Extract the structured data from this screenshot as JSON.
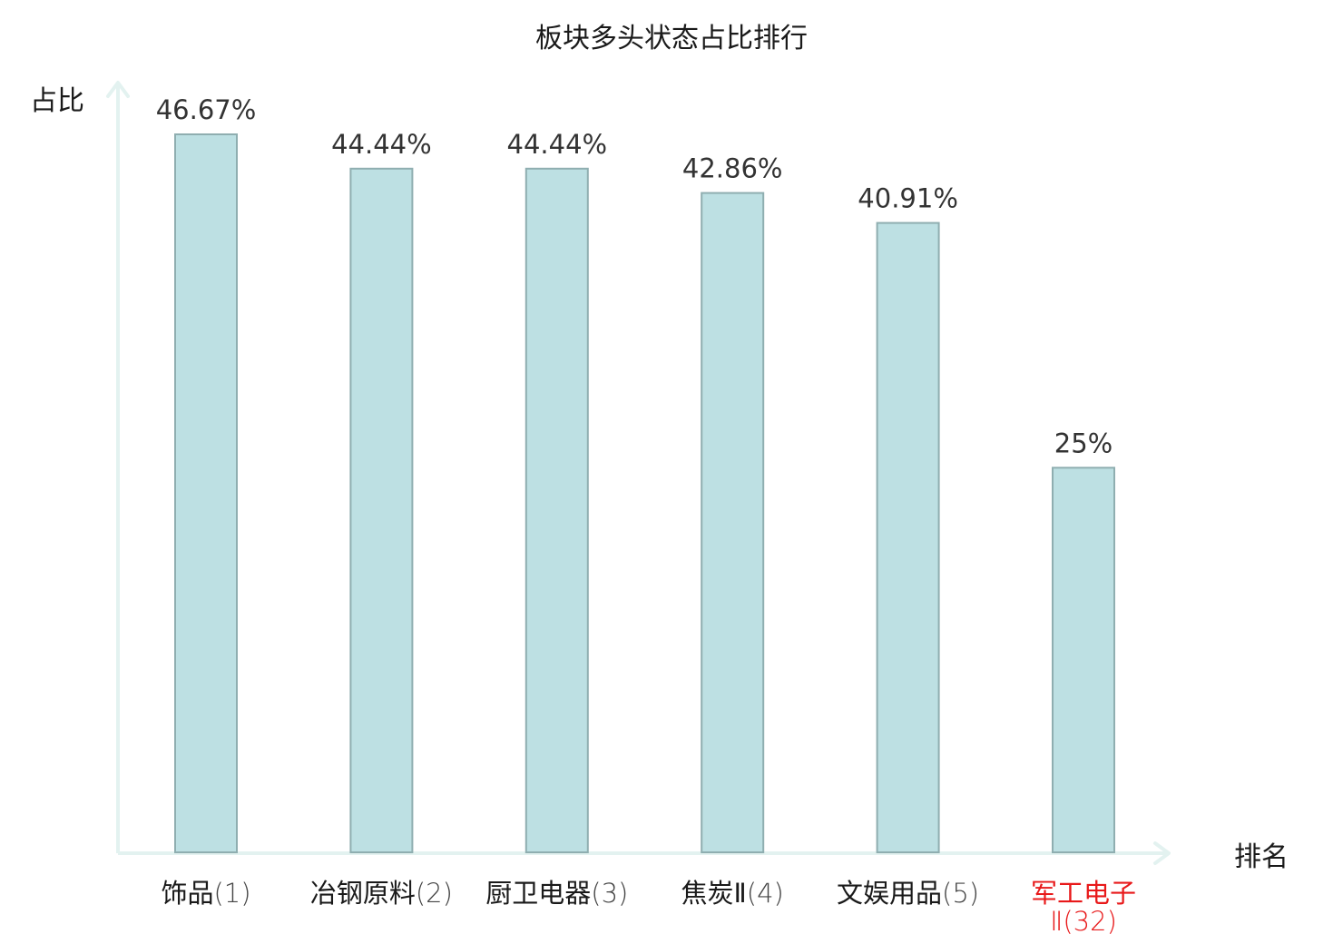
{
  "chart_data": {
    "type": "bar",
    "title": "板块多头状态占比排行",
    "ylabel": "占比",
    "xlabel": "排名",
    "categories": [
      {
        "label": "饰品",
        "rank": "(1)"
      },
      {
        "label": "冶钢原料",
        "rank": "(2)"
      },
      {
        "label": "厨卫电器",
        "rank": "(3)"
      },
      {
        "label": "焦炭Ⅱ",
        "rank": "(4)"
      },
      {
        "label": "文娱用品",
        "rank": "(5)"
      },
      {
        "label": "军工电子",
        "rank": "Ⅱ(32)",
        "highlight": true
      }
    ],
    "values": [
      46.67,
      44.44,
      44.44,
      42.86,
      40.91,
      25
    ],
    "value_labels": [
      "46.67%",
      "44.44%",
      "44.44%",
      "42.86%",
      "40.91%",
      "25%"
    ],
    "ylim": [
      0,
      47
    ],
    "grid": false,
    "legend": "none",
    "colors": {
      "bar_fill": "#bde0e3",
      "bar_stroke": "#8faeb0",
      "axis": "#e3f2f0",
      "text": "#1a1a1a",
      "value_text": "#333333",
      "highlight_text": "#e8191a"
    }
  }
}
